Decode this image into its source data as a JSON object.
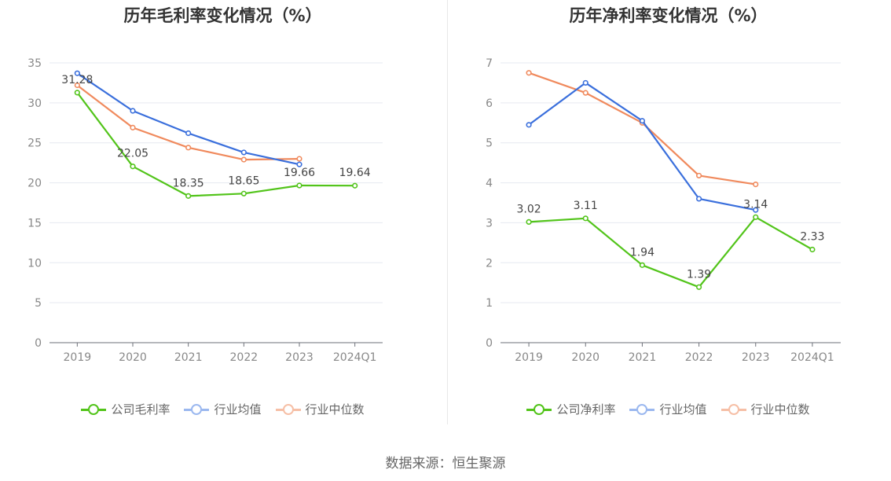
{
  "source_text": "数据来源：恒生聚源",
  "chart_data": [
    {
      "type": "line",
      "title": "历年毛利率变化情况（%）",
      "categories": [
        "2019",
        "2020",
        "2021",
        "2022",
        "2023",
        "2024Q1"
      ],
      "ylim": [
        0,
        35
      ],
      "yticks": [
        0,
        5,
        10,
        15,
        20,
        25,
        30,
        35
      ],
      "grid": true,
      "legend_position": "bottom",
      "series": [
        {
          "name": "公司毛利率",
          "color": "#52c41a",
          "values": [
            31.28,
            22.05,
            18.35,
            18.65,
            19.66,
            19.64
          ],
          "labels": [
            "31.28",
            "22.05",
            "18.35",
            "18.65",
            "19.66",
            "19.64"
          ]
        },
        {
          "name": "行业均值",
          "color": "#3a6fdc",
          "values": [
            33.7,
            29.0,
            26.2,
            23.8,
            22.3,
            null
          ]
        },
        {
          "name": "行业中位数",
          "color": "#f08a5d",
          "values": [
            32.2,
            26.9,
            24.4,
            22.9,
            23.0,
            null
          ]
        }
      ]
    },
    {
      "type": "line",
      "title": "历年净利率变化情况（%）",
      "categories": [
        "2019",
        "2020",
        "2021",
        "2022",
        "2023",
        "2024Q1"
      ],
      "ylim": [
        0,
        7
      ],
      "yticks": [
        0,
        1,
        2,
        3,
        4,
        5,
        6,
        7
      ],
      "grid": true,
      "legend_position": "bottom",
      "series": [
        {
          "name": "公司净利率",
          "color": "#52c41a",
          "values": [
            3.02,
            3.11,
            1.94,
            1.39,
            3.14,
            2.33
          ],
          "labels": [
            "3.02",
            "3.11",
            "1.94",
            "1.39",
            "3.14",
            "2.33"
          ]
        },
        {
          "name": "行业均值",
          "color": "#3a6fdc",
          "values": [
            5.45,
            6.5,
            5.55,
            3.6,
            3.32,
            null
          ]
        },
        {
          "name": "行业中位数",
          "color": "#f08a5d",
          "values": [
            6.75,
            6.25,
            5.5,
            4.18,
            3.96,
            null
          ]
        }
      ]
    }
  ]
}
